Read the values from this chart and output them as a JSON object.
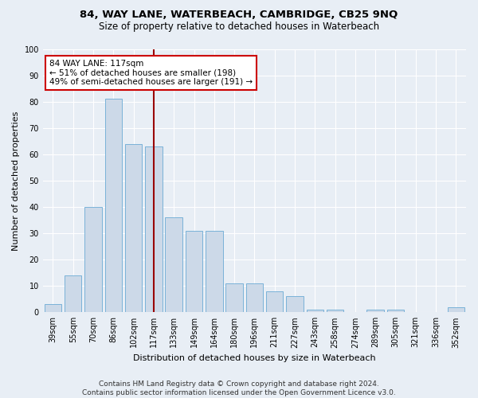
{
  "title1": "84, WAY LANE, WATERBEACH, CAMBRIDGE, CB25 9NQ",
  "title2": "Size of property relative to detached houses in Waterbeach",
  "xlabel": "Distribution of detached houses by size in Waterbeach",
  "ylabel": "Number of detached properties",
  "categories": [
    "39sqm",
    "55sqm",
    "70sqm",
    "86sqm",
    "102sqm",
    "117sqm",
    "133sqm",
    "149sqm",
    "164sqm",
    "180sqm",
    "196sqm",
    "211sqm",
    "227sqm",
    "243sqm",
    "258sqm",
    "274sqm",
    "289sqm",
    "305sqm",
    "321sqm",
    "336sqm",
    "352sqm"
  ],
  "values": [
    3,
    14,
    40,
    81,
    64,
    63,
    36,
    31,
    31,
    11,
    11,
    8,
    6,
    1,
    1,
    0,
    1,
    1,
    0,
    0,
    2
  ],
  "bar_color": "#ccd9e8",
  "bar_edge_color": "#6aaad4",
  "redline_index": 5,
  "redline_label": "84 WAY LANE: 117sqm",
  "annotation_line1": "← 51% of detached houses are smaller (198)",
  "annotation_line2": "49% of semi-detached houses are larger (191) →",
  "ylim": [
    0,
    100
  ],
  "yticks": [
    0,
    10,
    20,
    30,
    40,
    50,
    60,
    70,
    80,
    90,
    100
  ],
  "footer1": "Contains HM Land Registry data © Crown copyright and database right 2024.",
  "footer2": "Contains public sector information licensed under the Open Government Licence v3.0.",
  "bg_color": "#e8eef5",
  "plot_bg_color": "#e8eef5",
  "grid_color": "#ffffff",
  "title_fontsize": 9.5,
  "subtitle_fontsize": 8.5,
  "axis_label_fontsize": 8,
  "tick_fontsize": 7,
  "annot_fontsize": 7.5,
  "footer_fontsize": 6.5
}
